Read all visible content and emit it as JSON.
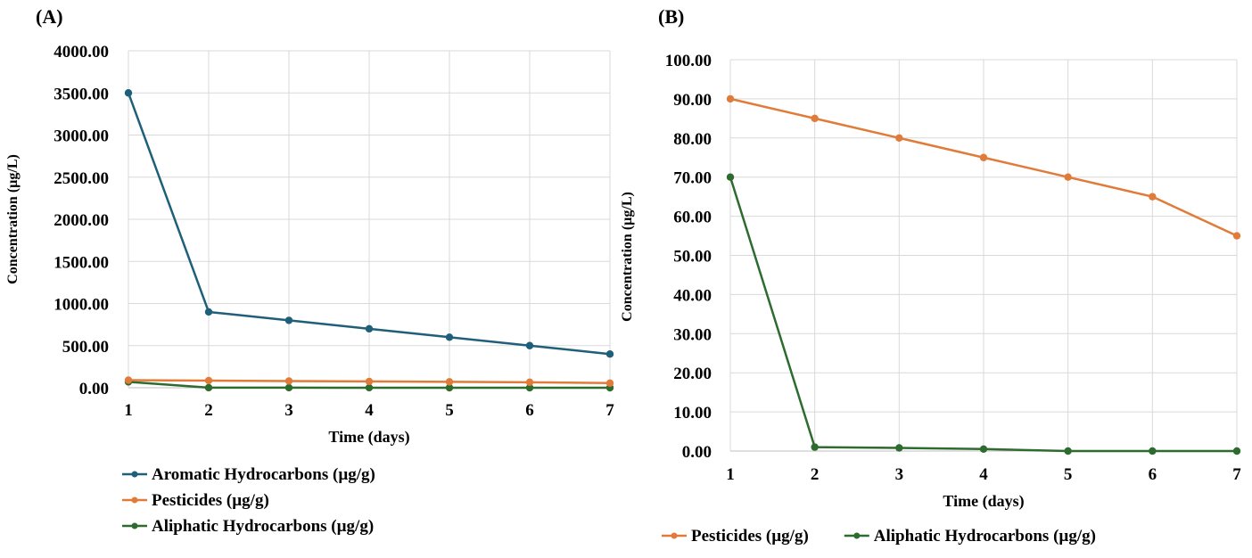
{
  "chart_data": [
    {
      "type": "line",
      "panel_label": "(A)",
      "title": "",
      "xlabel": "Time (days)",
      "ylabel": "Concentration (µg/L)",
      "x": [
        1,
        2,
        3,
        4,
        5,
        6,
        7
      ],
      "x_tick_labels": [
        "1",
        "2",
        "3",
        "4",
        "5",
        "6",
        "7"
      ],
      "ylim": [
        0,
        4000
      ],
      "y_ticks": [
        0,
        500,
        1000,
        1500,
        2000,
        2500,
        3000,
        3500,
        4000
      ],
      "y_tick_labels": [
        "0.00",
        "500.00",
        "1000.00",
        "1500.00",
        "2000.00",
        "2500.00",
        "3000.00",
        "3500.00",
        "4000.00"
      ],
      "grid": true,
      "legend_position": "bottom",
      "series": [
        {
          "name": "Aromatic Hydrocarbons (µg/g)",
          "color": "#1f5f7a",
          "values": [
            3500,
            900,
            800,
            700,
            600,
            500,
            400
          ]
        },
        {
          "name": "Pesticides (µg/g)",
          "color": "#e07b39",
          "values": [
            90,
            85,
            80,
            75,
            70,
            65,
            55
          ]
        },
        {
          "name": "Aliphatic Hydrocarbons (µg/g)",
          "color": "#2e6b2e",
          "values": [
            70,
            1,
            0.8,
            0.5,
            0,
            0,
            0
          ]
        }
      ]
    },
    {
      "type": "line",
      "panel_label": "(B)",
      "title": "",
      "xlabel": "Time (days)",
      "ylabel": "Concentration (µg/L)",
      "x": [
        1,
        2,
        3,
        4,
        5,
        6,
        7
      ],
      "x_tick_labels": [
        "1",
        "2",
        "3",
        "4",
        "5",
        "6",
        "7"
      ],
      "ylim": [
        0,
        100
      ],
      "y_ticks": [
        0,
        10,
        20,
        30,
        40,
        50,
        60,
        70,
        80,
        90,
        100
      ],
      "y_tick_labels": [
        "0.00",
        "10.00",
        "20.00",
        "30.00",
        "40.00",
        "50.00",
        "60.00",
        "70.00",
        "80.00",
        "90.00",
        "100.00"
      ],
      "grid": true,
      "legend_position": "bottom",
      "series": [
        {
          "name": "Pesticides (µg/g)",
          "color": "#e07b39",
          "values": [
            90,
            85,
            80,
            75,
            70,
            65,
            55
          ]
        },
        {
          "name": "Aliphatic Hydrocarbons (µg/g)",
          "color": "#2e6b2e",
          "values": [
            70,
            1,
            0.8,
            0.5,
            0,
            0,
            0
          ]
        }
      ]
    }
  ]
}
